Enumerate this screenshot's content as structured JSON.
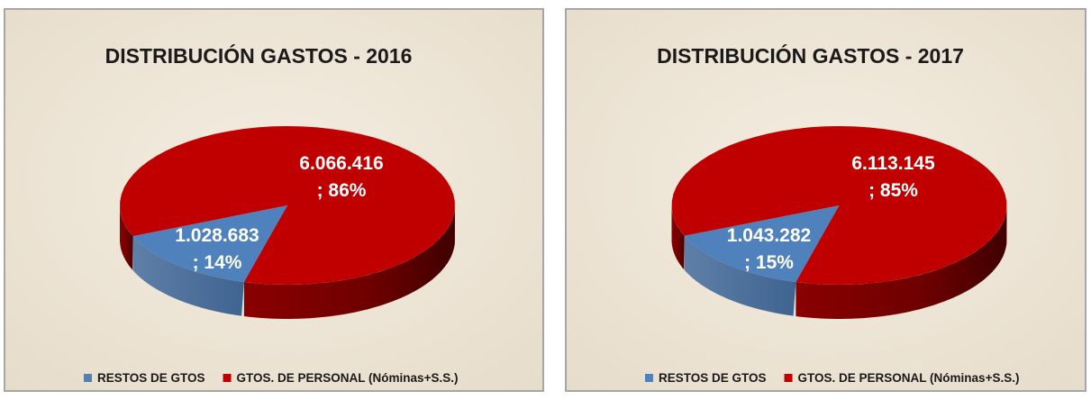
{
  "chart_data": [
    {
      "type": "pie",
      "title": "DISTRIBUCIÓN GASTOS - 2016",
      "categories": [
        "RESTOS DE GTOS",
        "GTOS. DE PERSONAL (Nóminas+S.S.)"
      ],
      "values": [
        1028683,
        6066416
      ],
      "value_labels": [
        "1.028.683",
        "6.066.416"
      ],
      "percent_labels": [
        "; 14%",
        "; 86%"
      ],
      "colors": [
        "#4f81bd",
        "#c00000"
      ],
      "legend": "bottom"
    },
    {
      "type": "pie",
      "title": "DISTRIBUCIÓN GASTOS - 2017",
      "categories": [
        "RESTOS DE GTOS",
        "GTOS. DE PERSONAL (Nóminas+S.S.)"
      ],
      "values": [
        1043282,
        6113145
      ],
      "value_labels": [
        "1.043.282",
        "6.113.145"
      ],
      "percent_labels": [
        "; 15%",
        "; 85%"
      ],
      "colors": [
        "#4f81bd",
        "#c00000"
      ],
      "legend": "bottom"
    }
  ]
}
